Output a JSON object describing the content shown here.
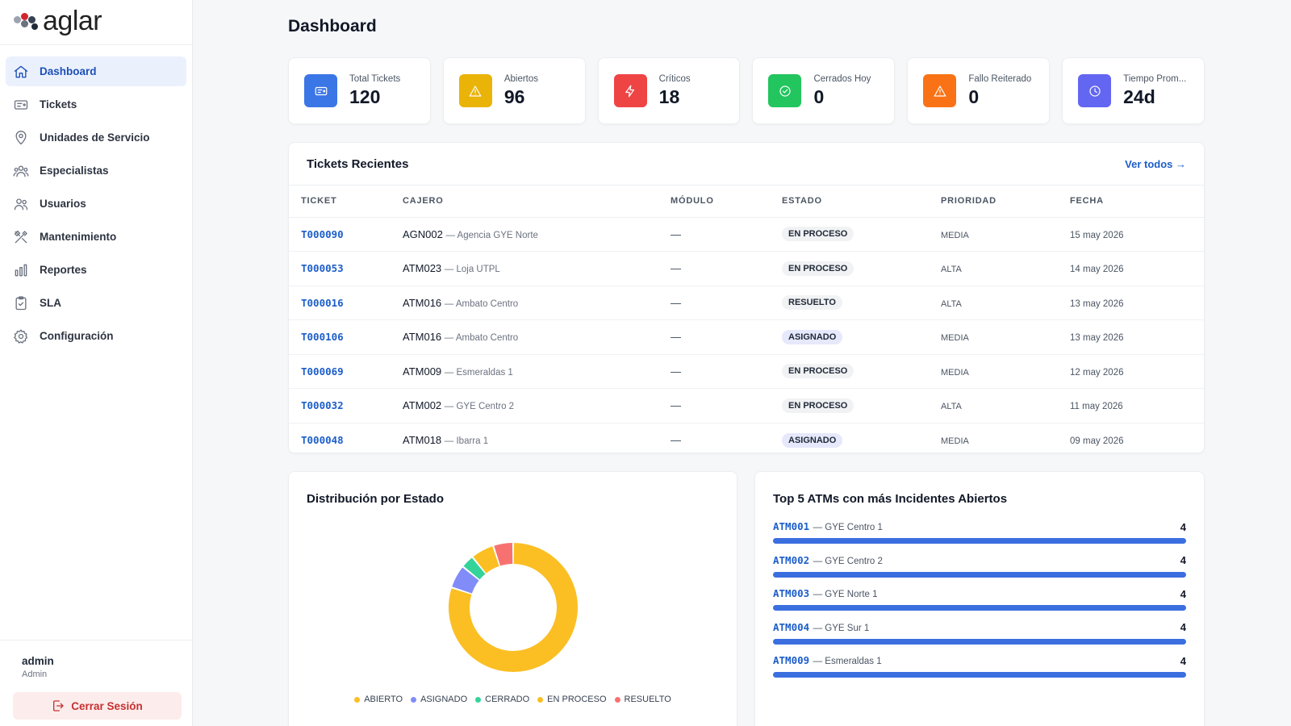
{
  "brand": {
    "logo_text": "aglar"
  },
  "sidebar": {
    "items": [
      {
        "label": "Dashboard",
        "icon": "home-icon",
        "active": true
      },
      {
        "label": "Tickets",
        "icon": "ticket-icon"
      },
      {
        "label": "Unidades de Servicio",
        "icon": "map-pin-icon"
      },
      {
        "label": "Especialistas",
        "icon": "users-group-icon"
      },
      {
        "label": "Usuarios",
        "icon": "users-icon"
      },
      {
        "label": "Mantenimiento",
        "icon": "tools-icon"
      },
      {
        "label": "Reportes",
        "icon": "bar-chart-icon"
      },
      {
        "label": "SLA",
        "icon": "clipboard-check-icon"
      },
      {
        "label": "Configuración",
        "icon": "gear-icon"
      }
    ],
    "user": {
      "name": "admin",
      "role": "Admin",
      "logout_label": "Cerrar Sesión"
    }
  },
  "page": {
    "title": "Dashboard"
  },
  "stats": [
    {
      "label": "Total Tickets",
      "value": "120",
      "color": "#3b76e6",
      "icon": "ticket-icon"
    },
    {
      "label": "Abiertos",
      "value": "96",
      "color": "#eab308",
      "icon": "warning-icon"
    },
    {
      "label": "Críticos",
      "value": "18",
      "color": "#ef4444",
      "icon": "lightning-icon"
    },
    {
      "label": "Cerrados Hoy",
      "value": "0",
      "color": "#22c55e",
      "icon": "check-circle-icon"
    },
    {
      "label": "Fallo Reiterado",
      "value": "0",
      "color": "#f97316",
      "icon": "warning-icon"
    },
    {
      "label": "Tiempo Prom...",
      "value": "24d",
      "color": "#6366f1",
      "icon": "clock-icon"
    }
  ],
  "recent": {
    "title": "Tickets Recientes",
    "see_all": "Ver todos →",
    "columns": [
      "TICKET",
      "CAJERO",
      "MÓDULO",
      "ESTADO",
      "PRIORIDAD",
      "FECHA"
    ],
    "rows": [
      {
        "ticket": "T000090",
        "atm": "AGN002",
        "loc": "— Agencia GYE Norte",
        "modulo": "—",
        "estado": "EN PROCESO",
        "prioridad": "MEDIA",
        "fecha": "15 may 2026"
      },
      {
        "ticket": "T000053",
        "atm": "ATM023",
        "loc": "— Loja UTPL",
        "modulo": "—",
        "estado": "EN PROCESO",
        "prioridad": "ALTA",
        "fecha": "14 may 2026"
      },
      {
        "ticket": "T000016",
        "atm": "ATM016",
        "loc": "— Ambato Centro",
        "modulo": "—",
        "estado": "RESUELTO",
        "prioridad": "ALTA",
        "fecha": "13 may 2026"
      },
      {
        "ticket": "T000106",
        "atm": "ATM016",
        "loc": "— Ambato Centro",
        "modulo": "—",
        "estado": "ASIGNADO",
        "prioridad": "MEDIA",
        "fecha": "13 may 2026"
      },
      {
        "ticket": "T000069",
        "atm": "ATM009",
        "loc": "— Esmeraldas 1",
        "modulo": "—",
        "estado": "EN PROCESO",
        "prioridad": "MEDIA",
        "fecha": "12 may 2026"
      },
      {
        "ticket": "T000032",
        "atm": "ATM002",
        "loc": "— GYE Centro 2",
        "modulo": "—",
        "estado": "EN PROCESO",
        "prioridad": "ALTA",
        "fecha": "11 may 2026"
      },
      {
        "ticket": "T000048",
        "atm": "ATM018",
        "loc": "— Ibarra 1",
        "modulo": "—",
        "estado": "ASIGNADO",
        "prioridad": "MEDIA",
        "fecha": "09 may 2026"
      }
    ]
  },
  "distribution": {
    "title": "Distribución por Estado",
    "segments": [
      {
        "name": "ABIERTO",
        "value": 96,
        "color": "#fbbf24"
      },
      {
        "name": "ASIGNADO",
        "value": 7,
        "color": "#818cf8"
      },
      {
        "name": "CERRADO",
        "value": 4,
        "color": "#34d399"
      },
      {
        "name": "EN PROCESO",
        "value": 7,
        "color": "#fbbf24"
      },
      {
        "name": "RESUELTO",
        "value": 6,
        "color": "#f87171"
      }
    ]
  },
  "top5": {
    "title": "Top 5 ATMs con más Incidentes Abiertos",
    "max": 4,
    "items": [
      {
        "code": "ATM001",
        "loc": "— GYE Centro 1",
        "count": 4
      },
      {
        "code": "ATM002",
        "loc": "— GYE Centro 2",
        "count": 4
      },
      {
        "code": "ATM003",
        "loc": "— GYE Norte 1",
        "count": 4
      },
      {
        "code": "ATM004",
        "loc": "— GYE Sur 1",
        "count": 4
      },
      {
        "code": "ATM009",
        "loc": "— Esmeraldas 1",
        "count": 4
      }
    ]
  }
}
